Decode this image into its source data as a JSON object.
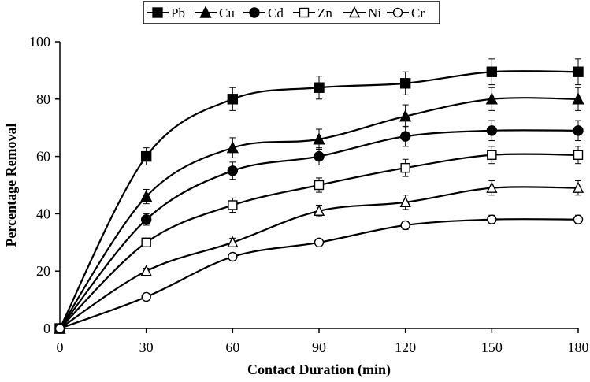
{
  "chart_data": {
    "type": "line",
    "title": "",
    "xlabel": "Contact Duration (min)",
    "ylabel": "Percentage Removal",
    "x": [
      0,
      30,
      60,
      90,
      120,
      150,
      180
    ],
    "xlim": [
      0,
      180
    ],
    "ylim": [
      0,
      100
    ],
    "xticks": [
      0,
      30,
      60,
      90,
      120,
      150,
      180
    ],
    "yticks": [
      0,
      20,
      40,
      60,
      80,
      100
    ],
    "grid": false,
    "legend_position": "top",
    "series": [
      {
        "name": "Pb",
        "marker": "square-filled",
        "values": [
          0,
          60,
          80,
          84,
          85.5,
          89.5,
          89.5
        ],
        "errors": [
          0,
          3,
          4,
          4,
          4,
          4.5,
          4.5
        ]
      },
      {
        "name": "Cu",
        "marker": "triangle-filled",
        "values": [
          0,
          46,
          63,
          66,
          74,
          80,
          80
        ],
        "errors": [
          0,
          2.5,
          3.5,
          3.5,
          4,
          4,
          4
        ]
      },
      {
        "name": "Cd",
        "marker": "circle-filled",
        "values": [
          0,
          38,
          55,
          60,
          67,
          69,
          69
        ],
        "errors": [
          0,
          2,
          3,
          3,
          3.5,
          3.5,
          3.5
        ]
      },
      {
        "name": "Zn",
        "marker": "square-open",
        "values": [
          0,
          30,
          43,
          50,
          56,
          60.5,
          60.5
        ],
        "errors": [
          0,
          1.5,
          2.5,
          2.5,
          3,
          3,
          3
        ]
      },
      {
        "name": "Ni",
        "marker": "triangle-open",
        "values": [
          0,
          20,
          30,
          41,
          44,
          49,
          49
        ],
        "errors": [
          0,
          1,
          1.5,
          2,
          2.5,
          2.5,
          2.5
        ]
      },
      {
        "name": "Cr",
        "marker": "circle-open",
        "values": [
          0,
          11,
          25,
          30,
          36,
          38,
          38
        ],
        "errors": [
          0,
          0,
          1,
          1,
          1.5,
          1.5,
          1.5
        ]
      }
    ]
  }
}
